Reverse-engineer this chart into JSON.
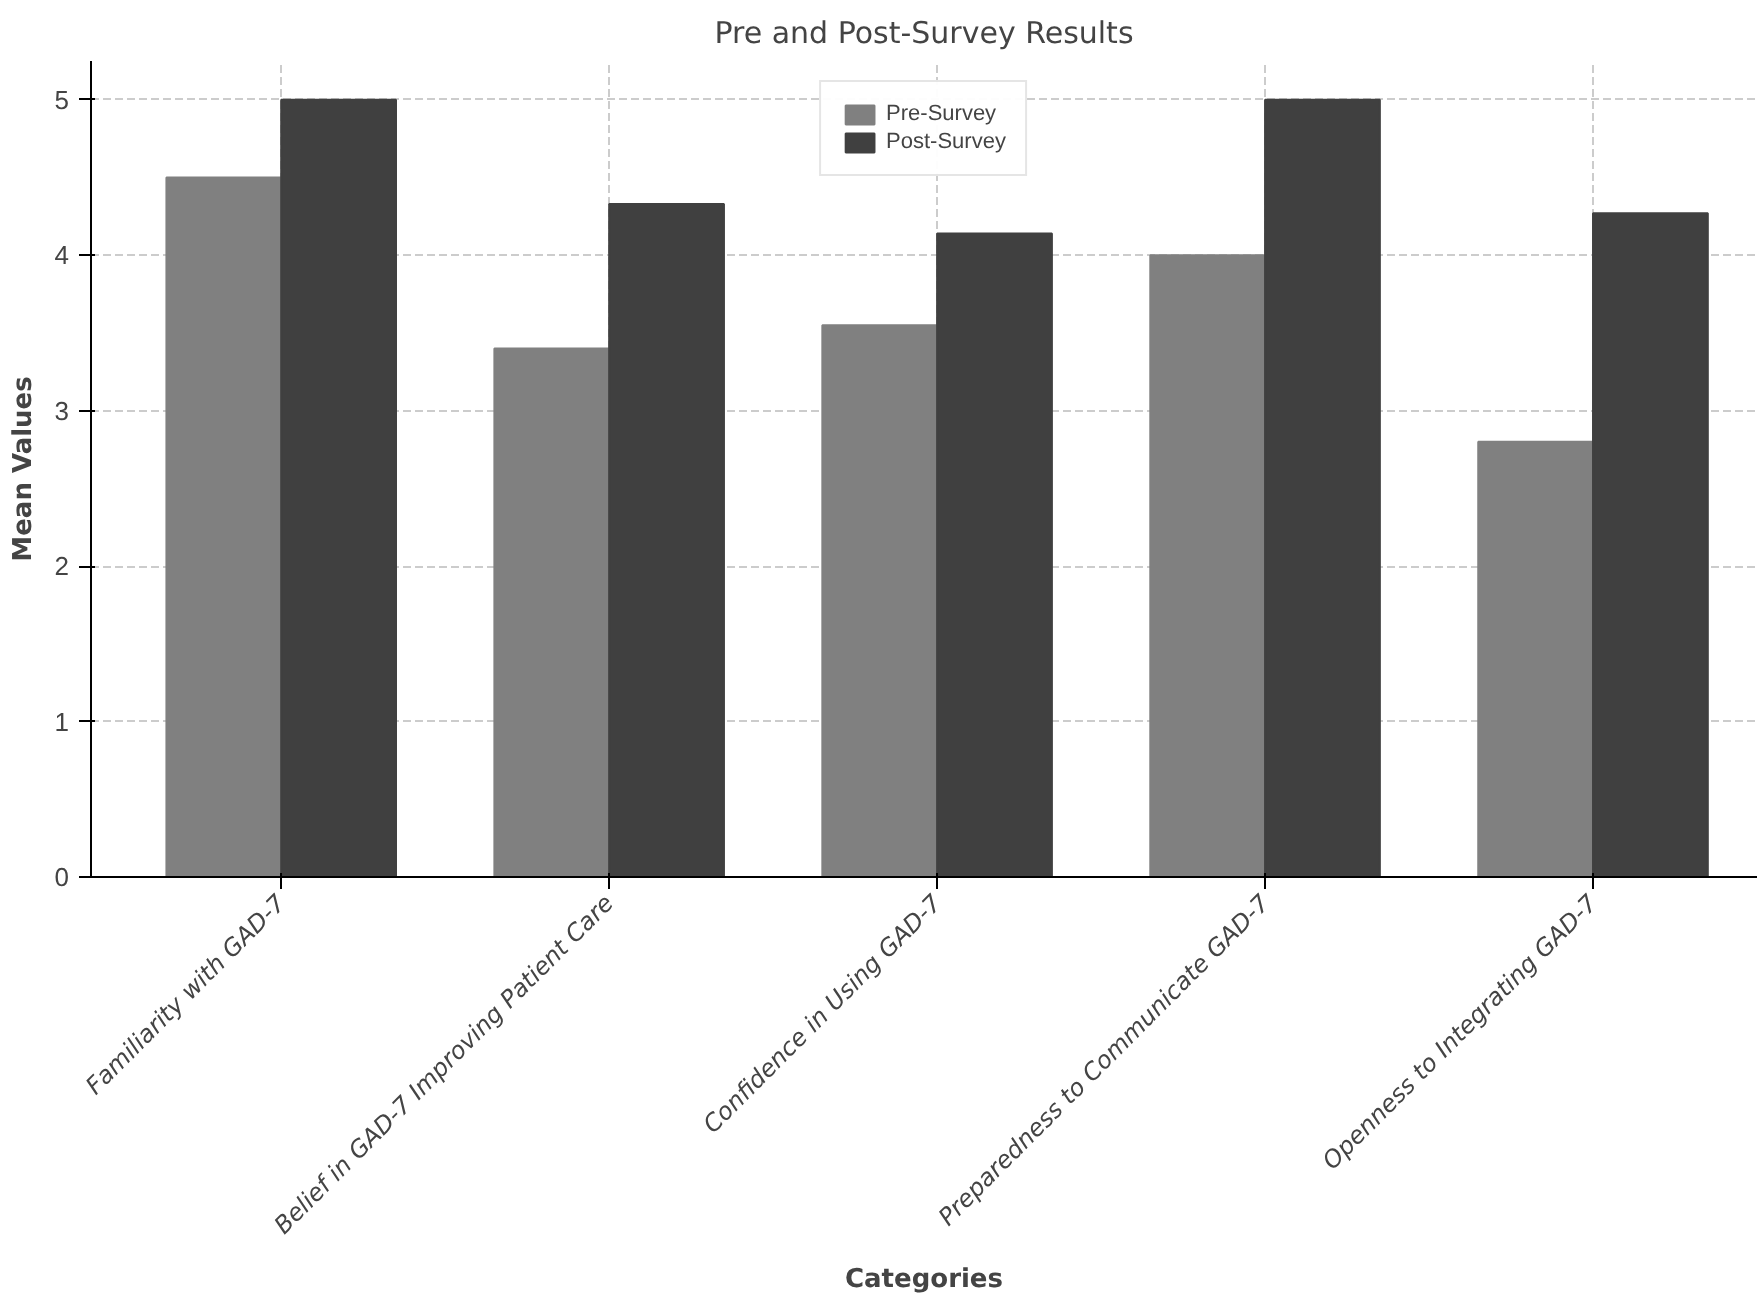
{
  "chart_data": {
    "type": "bar",
    "title": "Pre and Post-Survey Results",
    "xlabel": "Categories",
    "ylabel": "Mean Values",
    "categories": [
      "Familiarity with GAD-7",
      "Belief in GAD-7 Improving Patient Care",
      "Confidence in Using GAD-7",
      "Preparedness to Communicate GAD-7",
      "Openness to Integrating GAD-7"
    ],
    "series": [
      {
        "name": "Pre-Survey",
        "color": "#808080",
        "values": [
          4.5,
          3.4,
          3.55,
          4.0,
          2.8
        ]
      },
      {
        "name": "Post-Survey",
        "color": "#404040",
        "values": [
          5.0,
          4.33,
          4.14,
          5.0,
          4.27
        ]
      }
    ],
    "ylim": [
      0,
      5.25
    ],
    "yticks": [
      0,
      1,
      2,
      3,
      4,
      5
    ],
    "grid": true,
    "legend": "top"
  }
}
